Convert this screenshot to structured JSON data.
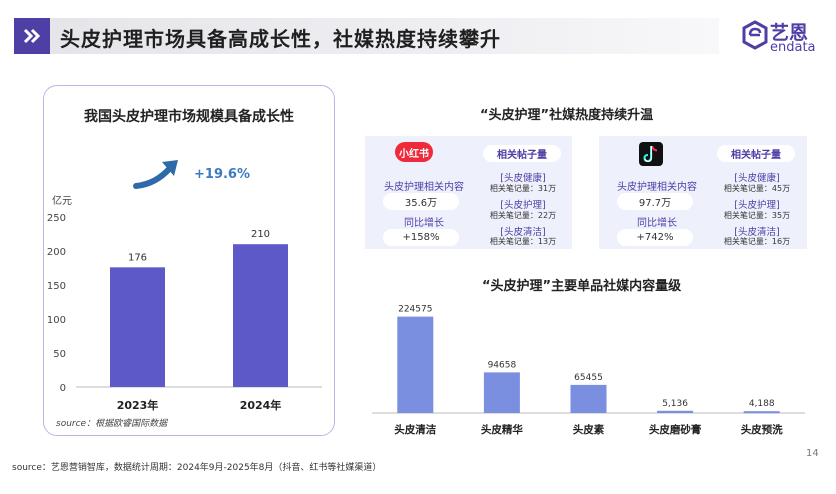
{
  "header": {
    "title": "头皮护理市场具备高成长性，社媒热度持续攀升"
  },
  "brand": {
    "name_cn": "艺恩",
    "name_en": "endata"
  },
  "left_card": {
    "title": "我国头皮护理市场规模具备成长性",
    "growth": "+19.6%",
    "unit": "亿元",
    "source": "source：根据欧睿国际数据"
  },
  "social": {
    "title": "“头皮护理”社媒热度持续升温",
    "xhs": {
      "logo": "小红书",
      "label_content": "头皮护理相关内容",
      "value_content": "35.6万",
      "label_growth": "同比增长",
      "value_growth": "+158%",
      "posts_header": "相关帖子量",
      "items": [
        {
          "tag": "[头皮健康]",
          "count": "相关笔记量：31万"
        },
        {
          "tag": "[头皮护理]",
          "count": "相关笔记量：22万"
        },
        {
          "tag": "[头皮清洁]",
          "count": "相关笔记量：13万"
        }
      ]
    },
    "douyin": {
      "label_content": "头皮护理相关内容",
      "value_content": "97.7万",
      "label_growth": "同比增长",
      "value_growth": "+742%",
      "posts_header": "相关帖子量",
      "items": [
        {
          "tag": "[头皮健康]",
          "count": "相关笔记量：45万"
        },
        {
          "tag": "[头皮护理]",
          "count": "相关笔记量：35万"
        },
        {
          "tag": "[头皮清洁]",
          "count": "相关笔记量：16万"
        }
      ]
    }
  },
  "products": {
    "title": "“头皮护理”主要单品社媒内容量级"
  },
  "footer": {
    "source": "source：艺恩营销智库，数据统计周期：2024年9月-2025年8月（抖音、红书等社媒渠道）",
    "page": "14"
  },
  "colors": {
    "brand": "#4e3fa6",
    "bar_left": "#5e59c9",
    "bar_right": "#7a8fe0",
    "accent_blue": "#3a7bbf"
  },
  "chart_data": [
    {
      "type": "bar",
      "categories": [
        "2023年",
        "2024年"
      ],
      "values": [
        176,
        210
      ],
      "labels": [
        "176",
        "210"
      ],
      "ylim": [
        0,
        250
      ],
      "yticks": [
        0,
        50,
        100,
        150,
        200,
        250
      ],
      "ylabel": "亿元",
      "grid": false
    },
    {
      "type": "bar",
      "categories": [
        "头皮清洁",
        "头皮精华",
        "头皮素",
        "头皮磨砂膏",
        "头皮预洗"
      ],
      "values": [
        224575,
        94658,
        65455,
        5136,
        4188
      ],
      "labels": [
        "224575",
        "94658",
        "65455",
        "5,136",
        "4,188"
      ],
      "ylim": [
        0,
        240000
      ],
      "grid": false
    }
  ]
}
